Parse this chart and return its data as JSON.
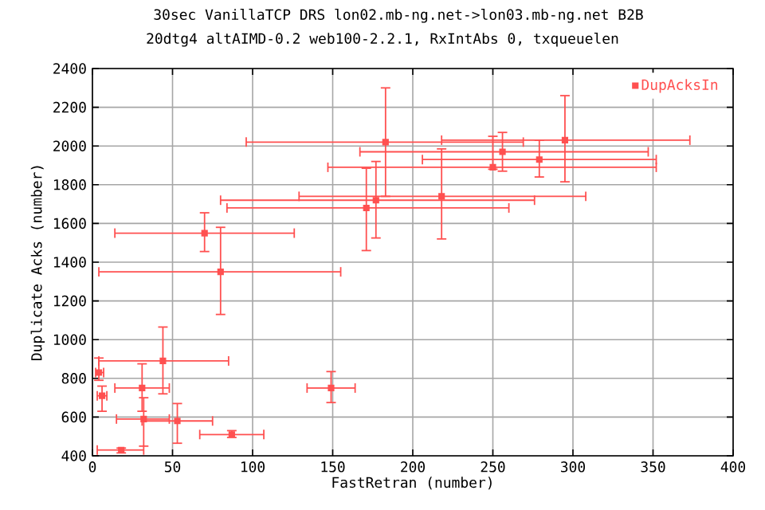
{
  "chart_data": {
    "type": "scatter",
    "title": "30sec VanillaTCP DRS lon02.mb-ng.net->lon03.mb-ng.net B2B",
    "subtitle": "20dtg4 altAIMD-0.2 web100-2.2.1, RxIntAbs 0, txqueuelen",
    "xlabel": "FastRetran (number)",
    "ylabel": "Duplicate Acks (number)",
    "xlim": [
      0,
      400
    ],
    "xticks": [
      0,
      50,
      100,
      150,
      200,
      250,
      300,
      350,
      400
    ],
    "ylim": [
      400,
      2400
    ],
    "yticks": [
      400,
      600,
      800,
      1000,
      1200,
      1400,
      1600,
      1800,
      2000,
      2200,
      2400
    ],
    "grid": true,
    "legend": "top right",
    "marker": "square",
    "series": [
      {
        "name": "DupAcksIn",
        "color": "#ff5050",
        "x": [
          183,
          295,
          256,
          279,
          250,
          218,
          177,
          171,
          70,
          80,
          44,
          4,
          6,
          31,
          32,
          53,
          18,
          87,
          149
        ],
        "values": [
          2020,
          2030,
          1970,
          1930,
          1890,
          1740,
          1720,
          1680,
          1550,
          1350,
          890,
          830,
          710,
          750,
          590,
          580,
          430,
          510,
          750
        ],
        "xerrors": [
          [
            96,
            269
          ],
          [
            218,
            373
          ],
          [
            167,
            347
          ],
          [
            206,
            352
          ],
          [
            147,
            352
          ],
          [
            129,
            308
          ],
          [
            80,
            276
          ],
          [
            84,
            260
          ],
          [
            14,
            126
          ],
          [
            4,
            155
          ],
          [
            4,
            85
          ],
          [
            2,
            7
          ],
          [
            3,
            9
          ],
          [
            14,
            48
          ],
          [
            15,
            48
          ],
          [
            31,
            75
          ],
          [
            3,
            32
          ],
          [
            67,
            107
          ],
          [
            134,
            164
          ]
        ],
        "errors": [
          [
            1740,
            2300
          ],
          [
            1815,
            2260
          ],
          [
            1870,
            2070
          ],
          [
            1840,
            2030
          ],
          [
            1880,
            2050
          ],
          [
            1520,
            1985
          ],
          [
            1525,
            1920
          ],
          [
            1460,
            1885
          ],
          [
            1455,
            1655
          ],
          [
            1130,
            1580
          ],
          [
            720,
            1065
          ],
          [
            790,
            905
          ],
          [
            630,
            760
          ],
          [
            630,
            875
          ],
          [
            450,
            700
          ],
          [
            465,
            670
          ],
          [
            415,
            440
          ],
          [
            495,
            530
          ],
          [
            675,
            835
          ]
        ]
      }
    ]
  }
}
